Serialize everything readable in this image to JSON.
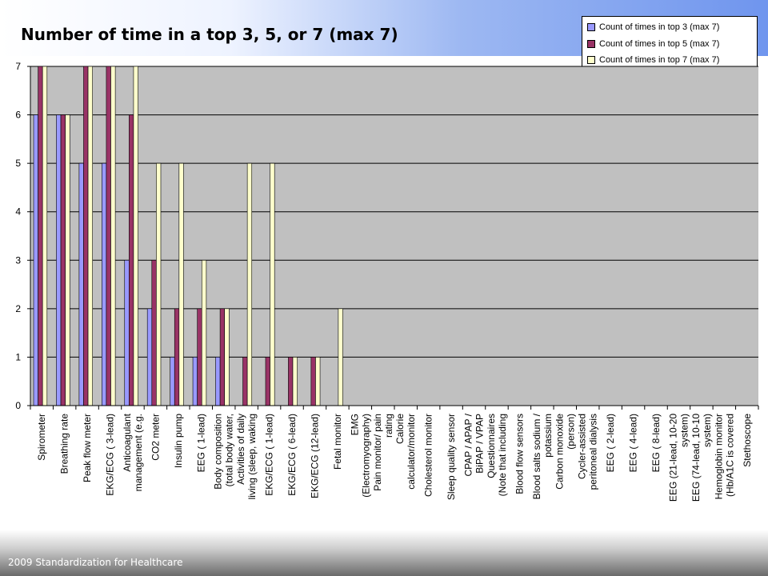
{
  "slide": {
    "title": "Number of time in a top 3, 5, or 7 (max 7)",
    "footer": "2009 Standardization for Healthcare"
  },
  "colors": {
    "series": [
      "#9999ff",
      "#993366",
      "#ffffcc"
    ],
    "plot_area": "#c0c0c0"
  },
  "chart_data": {
    "type": "bar",
    "title": "Number of time in a top 3, 5, or 7 (max 7)",
    "xlabel": "",
    "ylabel": "",
    "ylim": [
      0,
      7
    ],
    "yticks": [
      0,
      1,
      2,
      3,
      4,
      5,
      6,
      7
    ],
    "grid": true,
    "legend_position": "top-right",
    "categories": [
      [
        "Spirometer"
      ],
      [
        "Breathing rate"
      ],
      [
        "Peak flow meter"
      ],
      [
        "EKG/ECG ( 3-lead)"
      ],
      [
        "Anticoagulant",
        "management (e.g."
      ],
      [
        "CO2 meter"
      ],
      [
        "Insulin pump"
      ],
      [
        "EEG ( 1-lead)"
      ],
      [
        "Body composition",
        "(total body water,"
      ],
      [
        "Activities of daily",
        "living (sleep, waking"
      ],
      [
        "EKG/ECG ( 1-lead)"
      ],
      [
        "EKG/ECG ( 6-lead)"
      ],
      [
        "EKG/ECG (12-lead)"
      ],
      [
        "Fetal monitor"
      ],
      [
        "EMG",
        "(Electromyography)"
      ],
      [
        "Pain monitor/ pain",
        "rating"
      ],
      [
        "Calorie",
        "calculator/monitor"
      ],
      [
        "Cholesterol monitor"
      ],
      [
        "Sleep quality sensor"
      ],
      [
        "CPAP / APAP /",
        "BiPAP / VPAP"
      ],
      [
        "Questionnaires",
        "(Note that including"
      ],
      [
        "Blood flow sensors"
      ],
      [
        "Blood salts sodium /",
        "potassium"
      ],
      [
        "Carbon monoxide",
        "(person)"
      ],
      [
        "Cycler-assisted",
        "peritoneal dialysis"
      ],
      [
        "EEG ( 2-lead)"
      ],
      [
        "EEG ( 4-lead)"
      ],
      [
        "EEG ( 8-lead)"
      ],
      [
        "EEG (21-lead, 10-20",
        "system)"
      ],
      [
        "EEG (74-lead, 10-10",
        "system)"
      ],
      [
        "Hemoglobin monitor",
        "(Hb/A1C is covered"
      ],
      [
        "Stethoscope"
      ]
    ],
    "series": [
      {
        "name": "Count of times in top 3 (max 7)",
        "values": [
          6,
          6,
          5,
          5,
          3,
          2,
          1,
          1,
          1,
          0,
          0,
          0,
          0,
          0,
          0,
          0,
          0,
          0,
          0,
          0,
          0,
          0,
          0,
          0,
          0,
          0,
          0,
          0,
          0,
          0,
          0,
          0
        ]
      },
      {
        "name": "Count of times in top 5 (max 7)",
        "values": [
          7,
          6,
          7,
          7,
          6,
          3,
          2,
          2,
          2,
          1,
          1,
          1,
          1,
          0,
          0,
          0,
          0,
          0,
          0,
          0,
          0,
          0,
          0,
          0,
          0,
          0,
          0,
          0,
          0,
          0,
          0,
          0
        ]
      },
      {
        "name": "Count of times in top 7 (max 7)",
        "values": [
          7,
          6,
          7,
          7,
          7,
          5,
          5,
          3,
          2,
          5,
          5,
          1,
          1,
          2,
          0,
          0,
          0,
          0,
          0,
          0,
          0,
          0,
          0,
          0,
          0,
          0,
          0,
          0,
          0,
          0,
          0,
          0
        ]
      }
    ]
  }
}
